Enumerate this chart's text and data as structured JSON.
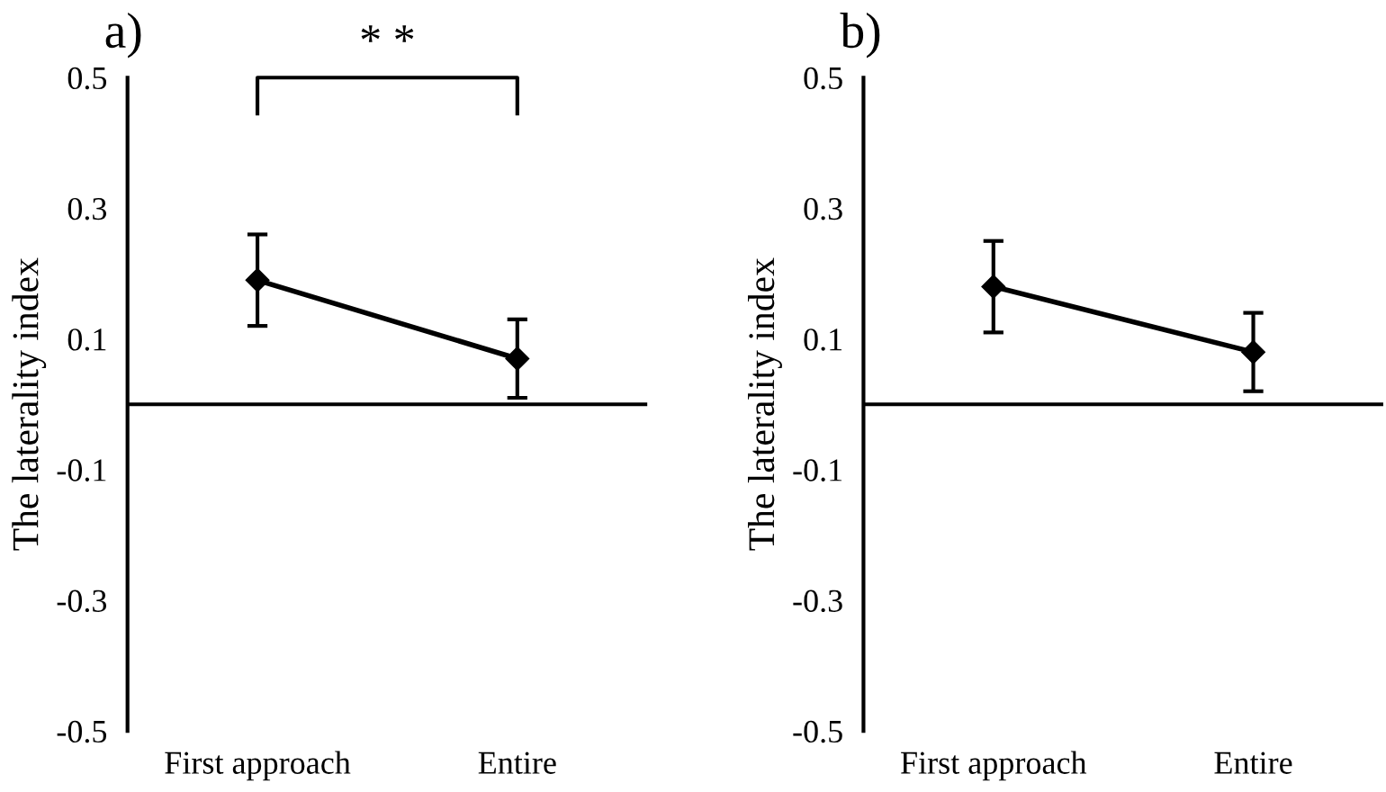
{
  "chart_data": [
    {
      "type": "line",
      "title": "a)",
      "ylabel": "The laterality index",
      "categories": [
        "First approach",
        "Entire"
      ],
      "series": [
        {
          "color": "#000000",
          "values": [
            0.19,
            0.07
          ],
          "errors": [
            0.07,
            0.06
          ]
        }
      ],
      "ylim": [
        -0.5,
        0.5
      ],
      "yticks": [
        -0.5,
        -0.3,
        -0.1,
        0.1,
        0.3,
        0.5
      ],
      "ref_lines": [
        {
          "axis": "y",
          "value": 0,
          "color": "#000000"
        }
      ],
      "annotations": [
        "* *"
      ],
      "marker": "diamond",
      "line_style": "solid",
      "grid": false,
      "legend": false
    },
    {
      "type": "line",
      "title": "b)",
      "ylabel": "The laterality index",
      "categories": [
        "First approach",
        "Entire"
      ],
      "series": [
        {
          "color": "#000000",
          "values": [
            0.18,
            0.08
          ],
          "errors": [
            0.07,
            0.06
          ]
        }
      ],
      "ylim": [
        -0.5,
        0.5
      ],
      "yticks": [
        -0.5,
        -0.3,
        -0.1,
        0.1,
        0.3,
        0.5
      ],
      "ref_lines": [
        {
          "axis": "y",
          "value": 0,
          "color": "#000000"
        }
      ],
      "marker": "diamond",
      "line_style": "solid",
      "grid": false,
      "legend": false
    }
  ]
}
